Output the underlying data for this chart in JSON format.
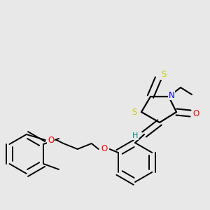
{
  "background_color": "#e8e8e8",
  "bond_color": "#000000",
  "atom_colors": {
    "S": "#cccc00",
    "N": "#0000ff",
    "O": "#ff0000",
    "H": "#008b8b",
    "C": "#000000"
  },
  "figsize": [
    3.0,
    3.0
  ],
  "dpi": 100
}
